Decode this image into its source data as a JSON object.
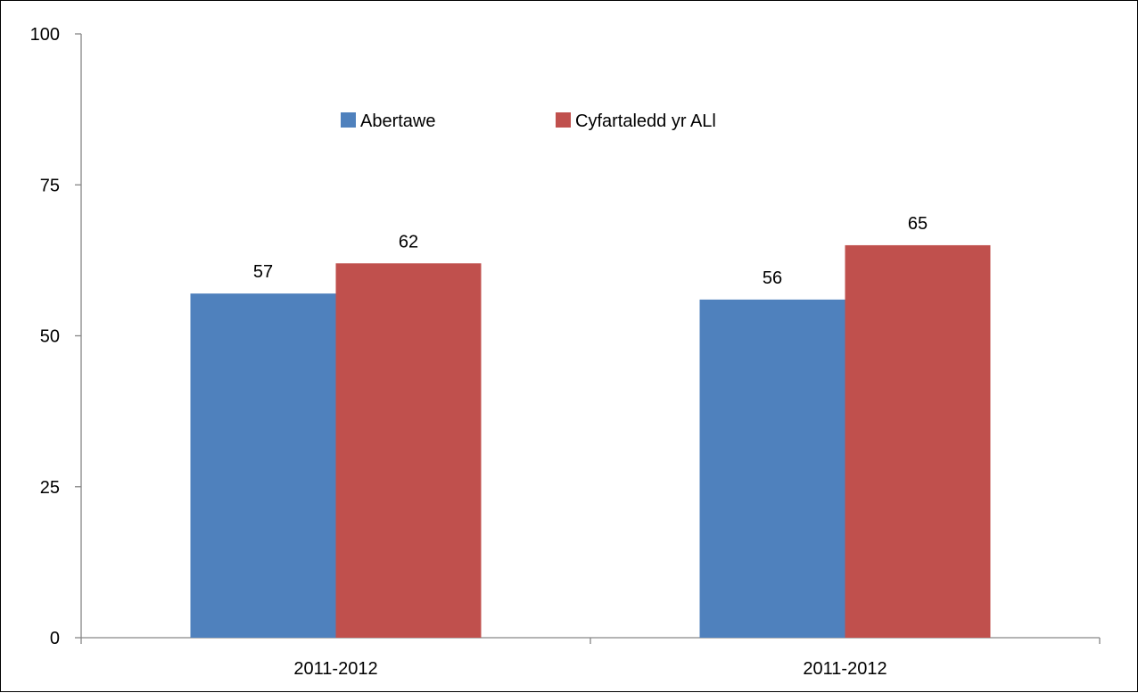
{
  "chart_data": {
    "type": "bar",
    "categories": [
      "2011-2012",
      "2011-2012"
    ],
    "series": [
      {
        "name": "Abertawe",
        "color": "#4F81BD",
        "values": [
          57,
          56
        ]
      },
      {
        "name": "Cyfartaledd yr ALl",
        "color": "#C0504D",
        "values": [
          62,
          65
        ]
      }
    ],
    "ylim": [
      0,
      100
    ],
    "yticks": [
      0,
      25,
      50,
      75,
      100
    ],
    "title": "",
    "xlabel": "",
    "ylabel": "",
    "grid": false,
    "legend": "top-center",
    "data_labels": true
  }
}
